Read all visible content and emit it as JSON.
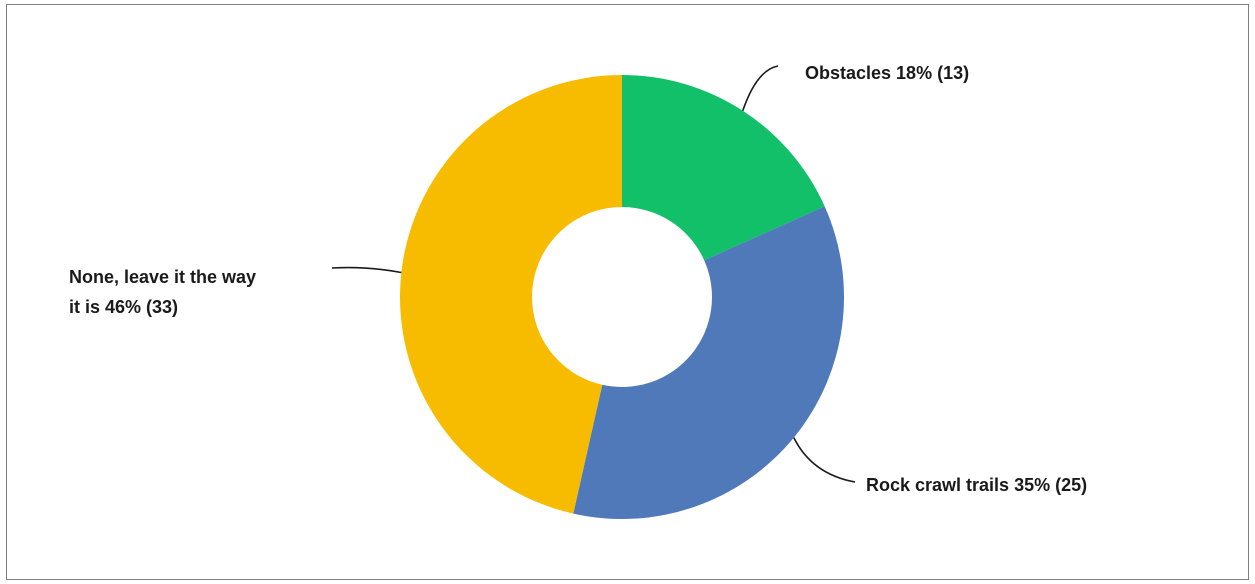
{
  "chart_data": {
    "type": "pie",
    "donut": true,
    "slices": [
      {
        "label": "Obstacles",
        "percent": "18%",
        "count": "(13)",
        "value": 13,
        "color": "#12c06a"
      },
      {
        "label": "Rock crawl trails",
        "percent": "35%",
        "count": "(25)",
        "value": 25,
        "color": "#4f79b9"
      },
      {
        "label": "None, leave it the way it is",
        "percent": "46%",
        "count": "(33)",
        "value": 33,
        "color": "#f7bc00"
      }
    ],
    "labels": [
      {
        "lines": [
          "Obstacles 18% (13)"
        ]
      },
      {
        "lines": [
          "Rock crawl trails 35% (25)"
        ]
      },
      {
        "lines": [
          "None, leave it the way",
          "it is 46% (33)"
        ]
      }
    ]
  }
}
